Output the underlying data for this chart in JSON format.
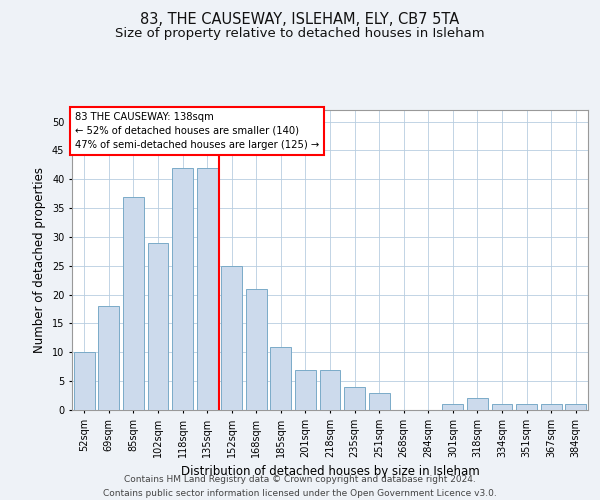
{
  "title1": "83, THE CAUSEWAY, ISLEHAM, ELY, CB7 5TA",
  "title2": "Size of property relative to detached houses in Isleham",
  "xlabel": "Distribution of detached houses by size in Isleham",
  "ylabel": "Number of detached properties",
  "categories": [
    "52sqm",
    "69sqm",
    "85sqm",
    "102sqm",
    "118sqm",
    "135sqm",
    "152sqm",
    "168sqm",
    "185sqm",
    "201sqm",
    "218sqm",
    "235sqm",
    "251sqm",
    "268sqm",
    "284sqm",
    "301sqm",
    "318sqm",
    "334sqm",
    "351sqm",
    "367sqm",
    "384sqm"
  ],
  "values": [
    10,
    18,
    37,
    29,
    42,
    42,
    25,
    21,
    11,
    7,
    7,
    4,
    3,
    0,
    0,
    1,
    2,
    1,
    1,
    1,
    1
  ],
  "bar_color": "#ccdaec",
  "bar_edge_color": "#7aaac8",
  "vline_index": 5.5,
  "vline_color": "red",
  "annotation_title": "83 THE CAUSEWAY: 138sqm",
  "annotation_line1": "← 52% of detached houses are smaller (140)",
  "annotation_line2": "47% of semi-detached houses are larger (125) →",
  "annotation_box_color": "white",
  "annotation_box_edge": "red",
  "ylim": [
    0,
    52
  ],
  "yticks": [
    0,
    5,
    10,
    15,
    20,
    25,
    30,
    35,
    40,
    45,
    50
  ],
  "footer1": "Contains HM Land Registry data © Crown copyright and database right 2024.",
  "footer2": "Contains public sector information licensed under the Open Government Licence v3.0.",
  "bg_color": "#eef2f7",
  "plot_bg_color": "#ffffff",
  "grid_color": "#b8cde0",
  "title_fontsize": 10.5,
  "subtitle_fontsize": 9.5,
  "axis_label_fontsize": 8.5,
  "tick_fontsize": 7,
  "footer_fontsize": 6.5,
  "bar_width": 0.85
}
